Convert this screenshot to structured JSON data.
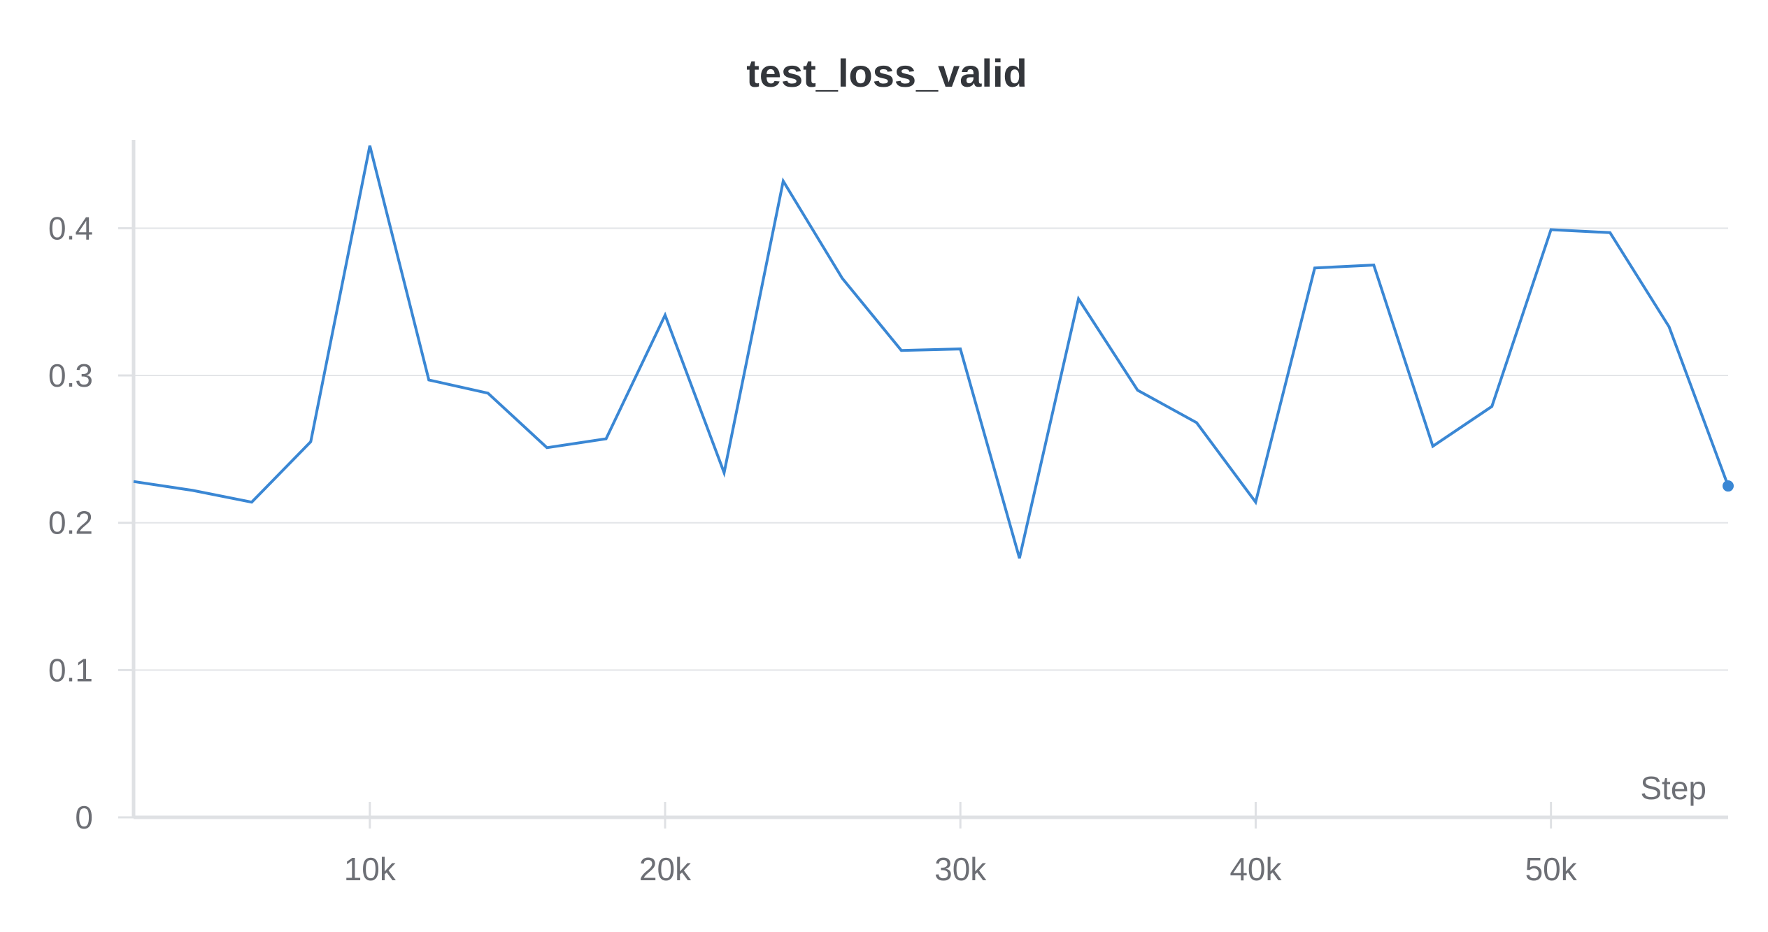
{
  "chart_data": {
    "type": "line",
    "title": "test_loss_valid",
    "xlabel": "Step",
    "ylabel": "",
    "xlim": [
      2000,
      56000
    ],
    "ylim": [
      0,
      0.46
    ],
    "x_ticks": [
      10000,
      20000,
      30000,
      40000,
      50000
    ],
    "x_tick_labels": [
      "10k",
      "20k",
      "30k",
      "40k",
      "50k"
    ],
    "y_ticks": [
      0,
      0.1,
      0.2,
      0.3,
      0.4
    ],
    "y_tick_labels": [
      "0",
      "0.1",
      "0.2",
      "0.3",
      "0.4"
    ],
    "grid": true,
    "line_color": "#3a87d4",
    "series": [
      {
        "x": [
          2000,
          4000,
          6000,
          8000,
          10000,
          12000,
          14000,
          16000,
          18000,
          20000,
          22000,
          24000,
          26000,
          28000,
          30000,
          32000,
          34000,
          36000,
          38000,
          40000,
          42000,
          44000,
          46000,
          48000,
          50000,
          52000,
          54000,
          56000
        ],
        "y": [
          0.228,
          0.222,
          0.214,
          0.255,
          0.456,
          0.297,
          0.288,
          0.251,
          0.257,
          0.341,
          0.234,
          0.432,
          0.366,
          0.317,
          0.318,
          0.176,
          0.352,
          0.29,
          0.268,
          0.214,
          0.373,
          0.375,
          0.252,
          0.279,
          0.399,
          0.397,
          0.333,
          0.225
        ]
      }
    ]
  }
}
